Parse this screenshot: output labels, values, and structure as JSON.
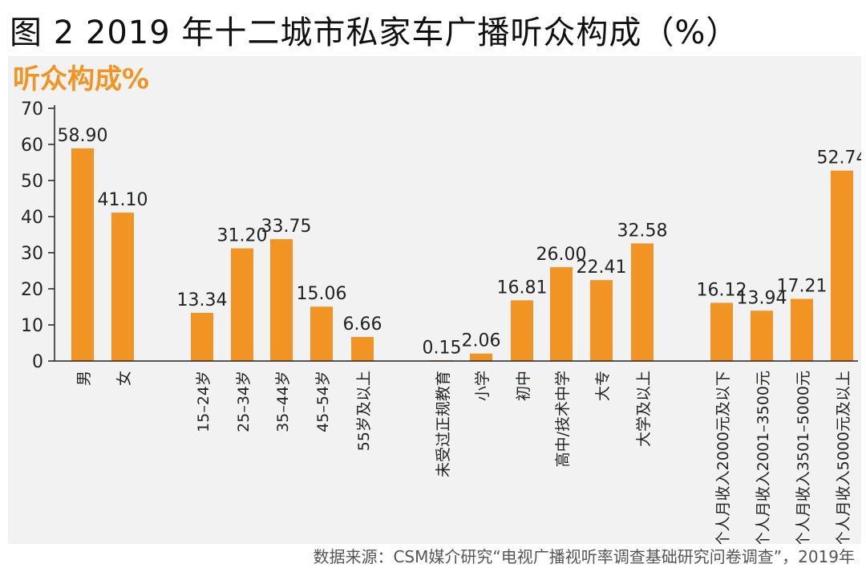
{
  "figure_title": "图 2 2019 年十二城市私家车广播听众构成（%）",
  "source_note": "数据来源：CSM媒介研究“电视广播视听率调查基础研究问卷调查”，2019年",
  "colors": {
    "bar": "#F29423",
    "unit_label": "#F29423",
    "axis": "#222222"
  },
  "chart_data": {
    "type": "bar",
    "title": "",
    "ylabel": "听众构成%",
    "xlabel": "",
    "ylim": [
      0,
      70
    ],
    "yticks": [
      0,
      10,
      20,
      30,
      40,
      50,
      60,
      70
    ],
    "grid": false,
    "legend": "none",
    "categories": [
      "男",
      "女",
      "15–24岁",
      "25–34岁",
      "35–44岁",
      "45–54岁",
      "55岁及以上",
      "未受过正规教育",
      "小学",
      "初中",
      "高中/技术中学",
      "大专",
      "大学及以上",
      "个人月收入2000元及以下",
      "个人月收入2001–3500元",
      "个人月收入3501–5000元",
      "个人月收入5000元及以上"
    ],
    "values": [
      58.9,
      41.1,
      13.34,
      31.2,
      33.75,
      15.06,
      6.66,
      0.15,
      2.06,
      16.81,
      26.0,
      22.41,
      32.58,
      16.12,
      13.94,
      17.21,
      52.74
    ],
    "value_labels": [
      "58.90",
      "41.10",
      "13.34",
      "31.20",
      "33.75",
      "15.06",
      "6.66",
      "0.15",
      "2.06",
      "16.81",
      "26.00",
      "22.41",
      "32.58",
      "16.12",
      "13.94",
      "17.21",
      "52.74"
    ]
  }
}
